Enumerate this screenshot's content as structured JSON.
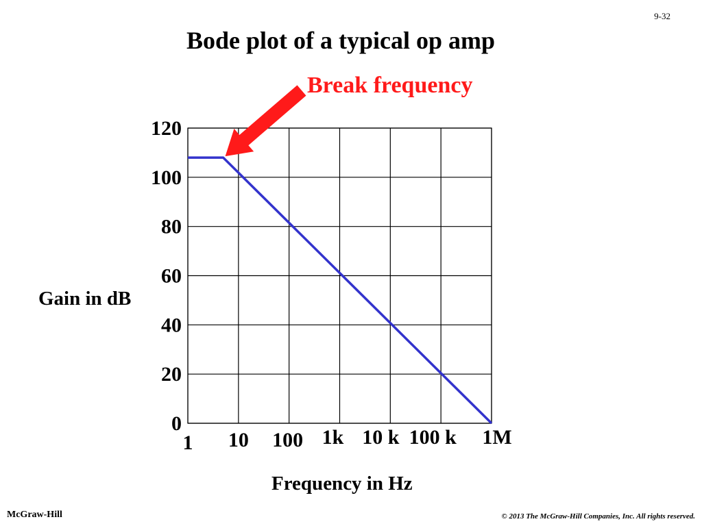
{
  "slide": {
    "number": "9-32",
    "footer_left": "McGraw-Hill",
    "footer_right": "© 2013 The McGraw-Hill Companies, Inc. All rights reserved."
  },
  "colors": {
    "series": "#3333cc",
    "annotation": "#ff1a1a",
    "grid": "#000000"
  },
  "chart_data": {
    "type": "line",
    "title": "Bode plot of a typical op amp",
    "xlabel": "Frequency in Hz",
    "ylabel": "Gain in dB",
    "x_scale": "log",
    "xlim": [
      1,
      1000000
    ],
    "ylim": [
      0,
      120
    ],
    "grid": true,
    "x_ticks": [
      {
        "value": 1,
        "label": "1"
      },
      {
        "value": 10,
        "label": "10"
      },
      {
        "value": 100,
        "label": "100"
      },
      {
        "value": 1000,
        "label": "1k"
      },
      {
        "value": 10000,
        "label": "10 k"
      },
      {
        "value": 100000,
        "label": "100 k"
      },
      {
        "value": 1000000,
        "label": "1M"
      }
    ],
    "y_ticks": [
      {
        "value": 0,
        "label": "0"
      },
      {
        "value": 20,
        "label": "20"
      },
      {
        "value": 40,
        "label": "40"
      },
      {
        "value": 60,
        "label": "60"
      },
      {
        "value": 80,
        "label": "80"
      },
      {
        "value": 100,
        "label": "100"
      },
      {
        "value": 120,
        "label": "120"
      }
    ],
    "series": [
      {
        "x": [
          1,
          5,
          1000000
        ],
        "y": [
          108,
          108,
          0
        ]
      }
    ],
    "annotations": [
      {
        "text": "Break frequency",
        "x": 5,
        "y": 108
      }
    ]
  }
}
